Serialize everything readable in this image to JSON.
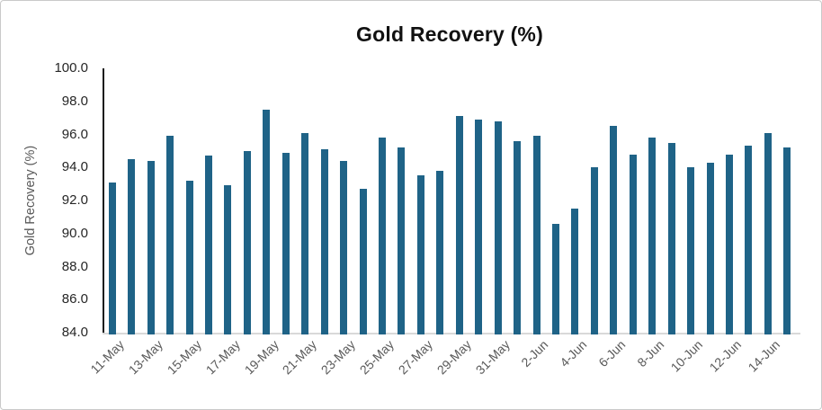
{
  "frame": {
    "background": "#ffffff",
    "border_color": "#c9c9c9"
  },
  "chart_data": {
    "type": "bar",
    "title": "Gold Recovery (%)",
    "ylabel": "Gold Recovery (%)",
    "xlabel": "",
    "ylim": [
      84.0,
      100.0
    ],
    "ytick_step": 2.0,
    "ytick_labels": [
      "100.0",
      "98.0",
      "96.0",
      "94.0",
      "92.0",
      "90.0",
      "88.0",
      "86.0",
      "84.0"
    ],
    "grid": false,
    "legend_position": "none",
    "bar_color": "#1F6387",
    "y_axis_line_color": "#1a1a1a",
    "x_axis_line_color": "#d9d9d9",
    "ytick_label_color": "#262626",
    "xtick_label_color": "#595959",
    "categories": [
      "11-May",
      "12-May",
      "13-May",
      "14-May",
      "15-May",
      "16-May",
      "17-May",
      "18-May",
      "19-May",
      "20-May",
      "21-May",
      "22-May",
      "23-May",
      "24-May",
      "25-May",
      "26-May",
      "27-May",
      "28-May",
      "29-May",
      "30-May",
      "31-May",
      "1-Jun",
      "2-Jun",
      "3-Jun",
      "4-Jun",
      "5-Jun",
      "6-Jun",
      "7-Jun",
      "8-Jun",
      "9-Jun",
      "10-Jun",
      "11-Jun",
      "12-Jun",
      "13-Jun",
      "14-Jun",
      "15-Jun"
    ],
    "values": [
      93.1,
      94.5,
      94.4,
      95.9,
      93.2,
      94.7,
      92.9,
      95.0,
      97.5,
      94.9,
      96.1,
      95.1,
      94.4,
      92.7,
      95.8,
      95.2,
      93.5,
      93.8,
      97.1,
      96.9,
      96.8,
      95.6,
      95.9,
      90.6,
      91.5,
      94.0,
      96.5,
      94.8,
      95.8,
      95.5,
      94.0,
      94.3,
      94.8,
      95.3,
      96.1,
      95.2
    ],
    "x_tick_every": 2,
    "x_tick_labels": [
      "11-May",
      "13-May",
      "15-May",
      "17-May",
      "19-May",
      "21-May",
      "23-May",
      "25-May",
      "27-May",
      "29-May",
      "31-May",
      "2-Jun",
      "4-Jun",
      "6-Jun",
      "8-Jun",
      "10-Jun",
      "12-Jun",
      "14-Jun"
    ]
  }
}
